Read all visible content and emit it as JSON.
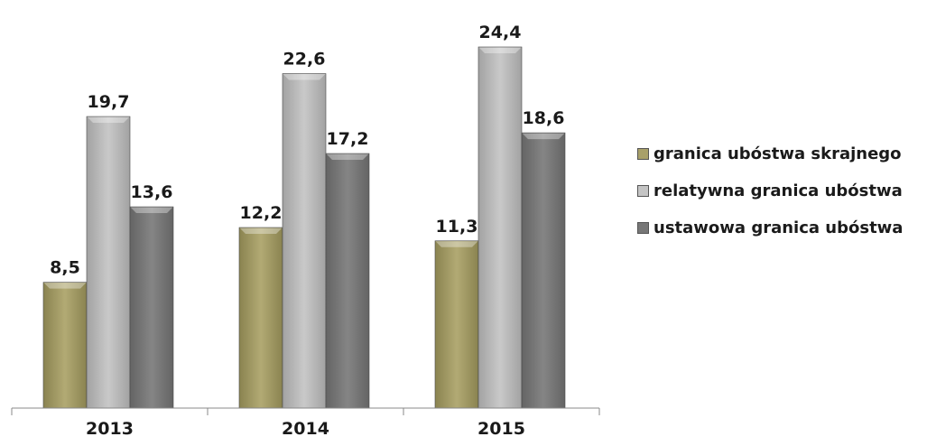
{
  "chart_data": {
    "type": "bar",
    "categories": [
      "2013",
      "2014",
      "2015"
    ],
    "series": [
      {
        "name": "granica ubóstwa skrajnego",
        "values": [
          8.5,
          12.2,
          11.3
        ],
        "labels": [
          "8,5",
          "12,2",
          "11,3"
        ],
        "color": "#a8a06a"
      },
      {
        "name": "relatywna granica ubóstwa",
        "values": [
          19.7,
          22.6,
          24.4
        ],
        "labels": [
          "19,7",
          "22,6",
          "24,4"
        ],
        "color": "#b8b8b8"
      },
      {
        "name": "ustawowa granica ubóstwa",
        "values": [
          13.6,
          17.2,
          18.6
        ],
        "labels": [
          "13,6",
          "17,2",
          "18,6"
        ],
        "color": "#7a7a7a"
      }
    ],
    "ylim": [
      0,
      24.4
    ],
    "grid": false,
    "legend": "right"
  }
}
